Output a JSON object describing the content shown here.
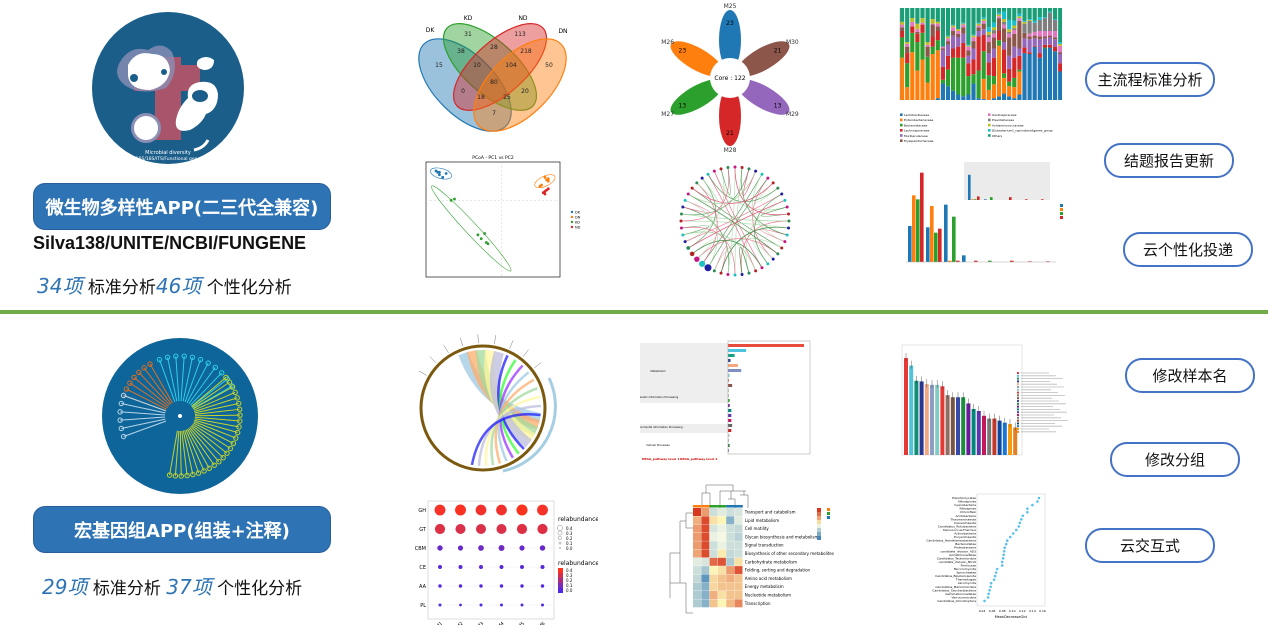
{
  "left": {
    "app1": {
      "logo_text": [
        "Microbial diversity",
        "16S/18S/ITS/Functional gene"
      ],
      "title": "微生物多样性APP(二三代全兼容)",
      "databases": "Silva138/UNITE/NCBI/FUNGENE",
      "std_count": "34项",
      "std_label": "标准分析",
      "custom_count": "46项",
      "custom_label": "个性化分析"
    },
    "app2": {
      "title": "宏基因组APP(组装+注释)",
      "std_count": "29项",
      "std_label": "标准分析",
      "custom_count": "37项",
      "custom_label": "个性化分析",
      "tree_groups": [
        {
          "color": "#e0701f",
          "leaves": 7
        },
        {
          "color": "#2fd0e8",
          "leaves": 11
        },
        {
          "color": "#c8d42a",
          "leaves": 26
        },
        {
          "color": "#b8d6ea",
          "leaves": 6
        }
      ]
    }
  },
  "features": [
    {
      "label": "主流程标准分析"
    },
    {
      "label": "结题报告更新"
    },
    {
      "label": "云个性化投递"
    },
    {
      "label": "修改样本名"
    },
    {
      "label": "修改分组"
    },
    {
      "label": "云交互式"
    }
  ],
  "colors": {
    "accent": "#2e74b5",
    "divider": "#70ad47",
    "pill_border": "#4472c4"
  },
  "chart_data": [
    {
      "id": "venn",
      "type": "venn",
      "sets": [
        {
          "name": "DK",
          "color": "#1f77b4"
        },
        {
          "name": "KD",
          "color": "#2ca02c"
        },
        {
          "name": "ND",
          "color": "#d62728"
        },
        {
          "name": "DN",
          "color": "#ff7f0e"
        }
      ],
      "regions": [
        "15",
        "31",
        "113",
        "50",
        "38",
        "28",
        "218",
        "10",
        "104",
        "80",
        "0",
        "20",
        "18",
        "25",
        "7"
      ]
    },
    {
      "id": "flower",
      "type": "flower",
      "core": "Core : 122",
      "petals": [
        {
          "name": "M25",
          "value": "23",
          "color": "#1f77b4"
        },
        {
          "name": "M30",
          "value": "21",
          "color": "#8c564b"
        },
        {
          "name": "M29",
          "value": "13",
          "color": "#9467bd"
        },
        {
          "name": "M28",
          "value": "21",
          "color": "#d62728"
        },
        {
          "name": "M27",
          "value": "13",
          "color": "#2ca02c"
        },
        {
          "name": "M26",
          "value": "23",
          "color": "#ff7f0e"
        }
      ]
    },
    {
      "id": "pcoa",
      "type": "scatter",
      "title": "PCoA - PC1 vs PC2",
      "xlim": [
        -0.45,
        0.35
      ],
      "ylim": [
        -0.6,
        0.3
      ],
      "series": [
        {
          "name": "DK",
          "color": "#1f77b4",
          "points": [
            [
              -0.39,
              0.23
            ],
            [
              -0.38,
              0.22
            ],
            [
              -0.37,
              0.22
            ],
            [
              -0.37,
              0.2
            ],
            [
              -0.35,
              0.18
            ],
            [
              -0.33,
              0.21
            ]
          ]
        },
        {
          "name": "DN",
          "color": "#ff7f0e",
          "points": [
            [
              0.23,
              0.11
            ],
            [
              0.24,
              0.12
            ],
            [
              0.26,
              0.18
            ],
            [
              0.27,
              0.16
            ],
            [
              0.28,
              0.17
            ],
            [
              0.28,
              0.15
            ]
          ]
        },
        {
          "name": "KD",
          "color": "#2ca02c",
          "points": [
            [
              -0.3,
              0.0
            ],
            [
              -0.28,
              0.01
            ],
            [
              -0.14,
              -0.27
            ],
            [
              -0.12,
              -0.3
            ],
            [
              -0.1,
              -0.26
            ],
            [
              -0.09,
              -0.33
            ],
            [
              -0.08,
              -0.34
            ]
          ]
        },
        {
          "name": "ND",
          "color": "#d62728",
          "points": [
            [
              0.25,
              0.06
            ],
            [
              0.26,
              0.05
            ],
            [
              0.26,
              0.07
            ],
            [
              0.27,
              0.08
            ],
            [
              0.28,
              0.09
            ]
          ]
        }
      ]
    },
    {
      "id": "network",
      "type": "chord-network",
      "node_colors": [
        "#c71585",
        "#b22222",
        "#2e8b57",
        "#1e1ea0",
        "#20c0c0"
      ],
      "edge_colors": [
        "#e8577e",
        "#3d8c40",
        "#a6d8a6"
      ]
    },
    {
      "id": "stacked",
      "type": "bar-stacked",
      "ylim": [
        0,
        100
      ],
      "legend": [
        "Lactobacillaceae",
        "Enterobacteriaceae",
        "Bacteroidaceae",
        "Lachnospiraceae",
        "Muribaculaceae",
        "Erysipelotrichaceae",
        "Oscillospiraceae",
        "Prevotellaceae",
        "Acidaminococcaceae",
        "[Eubacterium]_coprostanoligenes_group",
        "Others"
      ],
      "colors": [
        "#1f77b4",
        "#ff7f0e",
        "#2ca02c",
        "#d62728",
        "#9467bd",
        "#8c564b",
        "#e377c2",
        "#7f7f7f",
        "#bcbd22",
        "#17becf",
        "#1a9e77"
      ],
      "values": [
        [
          0,
          46,
          22,
          7,
          0,
          4,
          3,
          0,
          3,
          0
        ],
        [
          0,
          14,
          26,
          11,
          0,
          7,
          3,
          0,
          2,
          0
        ],
        [
          0,
          52,
          21,
          7,
          0,
          0,
          5,
          0,
          4,
          0
        ],
        [
          0,
          32,
          31,
          9,
          0,
          2,
          3,
          0,
          6,
          0
        ],
        [
          0,
          44,
          29,
          9,
          0,
          0,
          2,
          0,
          5,
          0
        ],
        [
          0,
          19,
          28,
          0,
          0,
          11,
          2,
          0,
          3,
          0
        ],
        [
          0,
          50,
          8,
          11,
          0,
          13,
          1,
          0,
          5,
          0
        ],
        [
          2,
          52,
          11,
          10,
          0,
          5,
          3,
          0,
          2,
          0
        ],
        [
          18,
          0,
          4,
          14,
          18,
          2,
          2,
          0,
          0,
          0
        ],
        [
          15,
          0,
          18,
          15,
          12,
          4,
          3,
          0,
          2,
          1
        ],
        [
          10,
          0,
          36,
          10,
          14,
          5,
          4,
          0,
          2,
          1
        ],
        [
          6,
          0,
          40,
          12,
          10,
          4,
          3,
          0,
          2,
          0
        ],
        [
          4,
          0,
          42,
          16,
          10,
          7,
          3,
          0,
          1,
          1
        ],
        [
          6,
          0,
          20,
          14,
          8,
          6,
          4,
          0,
          1,
          1
        ],
        [
          18,
          0,
          10,
          16,
          12,
          8,
          4,
          0,
          2,
          1
        ],
        [
          2,
          0,
          30,
          37,
          6,
          4,
          2,
          0,
          2,
          1
        ],
        [
          1,
          22,
          30,
          18,
          6,
          6,
          3,
          0,
          2,
          2
        ],
        [
          0,
          11,
          16,
          14,
          10,
          12,
          5,
          3,
          3,
          5
        ],
        [
          2,
          15,
          9,
          20,
          10,
          12,
          4,
          4,
          3,
          5
        ],
        [
          4,
          55,
          6,
          10,
          0,
          14,
          2,
          0,
          2,
          2
        ],
        [
          7,
          17,
          5,
          26,
          8,
          15,
          4,
          3,
          3,
          8
        ],
        [
          4,
          11,
          5,
          14,
          14,
          20,
          4,
          2,
          3,
          10
        ],
        [
          2,
          12,
          10,
          22,
          12,
          14,
          4,
          2,
          3,
          5
        ],
        [
          6,
          25,
          2,
          15,
          8,
          30,
          3,
          0,
          2,
          3
        ],
        [
          51,
          0,
          0,
          6,
          10,
          6,
          0,
          10,
          2,
          1
        ],
        [
          50,
          0,
          0,
          2,
          14,
          3,
          3,
          14,
          1,
          1
        ],
        [
          58,
          0,
          0,
          1,
          8,
          3,
          4,
          10,
          0,
          2
        ],
        [
          46,
          0,
          0,
          5,
          15,
          3,
          6,
          12,
          0,
          3
        ],
        [
          56,
          0,
          1,
          3,
          7,
          2,
          6,
          14,
          0,
          1
        ],
        [
          57,
          0,
          0,
          3,
          8,
          2,
          5,
          20,
          0,
          1
        ],
        [
          53,
          0,
          0,
          5,
          8,
          2,
          7,
          12,
          0,
          1
        ],
        [
          31,
          0,
          0,
          9,
          10,
          2,
          7,
          0,
          2,
          2
        ]
      ]
    },
    {
      "id": "grouped",
      "type": "bar",
      "ylim": [
        0,
        0.75
      ],
      "colors": [
        "#1f77b4",
        "#ff7f0e",
        "#2ca02c",
        "#d62728"
      ],
      "values": [
        [
          0.27,
          0.5,
          0.47,
          0.67
        ],
        [
          0.26,
          0.42,
          0.22,
          0.25
        ],
        [
          0.43,
          0.01,
          0.34,
          0.01
        ],
        [
          0.05,
          0,
          0,
          0.01
        ],
        [
          0,
          0,
          0.01,
          0
        ],
        [
          0,
          0,
          0,
          0.01
        ],
        [
          0,
          0,
          0,
          0.005
        ],
        [
          0,
          0,
          0,
          0.005
        ]
      ],
      "inset_values": [
        [
          0.7,
          0.02,
          0.02,
          0.1
        ],
        [
          0.02,
          0,
          0.08,
          0
        ],
        [
          0,
          0,
          0,
          0.08
        ],
        [
          0,
          0,
          0,
          0.02
        ],
        [
          0,
          0,
          0,
          0.02
        ]
      ]
    },
    {
      "id": "chord",
      "type": "chord",
      "ribbon_colors": [
        "#9ecae1",
        "#fdae6b",
        "#a1d99b",
        "#fff59d",
        "#bcbddc",
        "#1e1eff",
        "#33ff33",
        "#9933ff"
      ]
    },
    {
      "id": "kegg",
      "type": "bar-horizontal",
      "level1": [
        "Metabolism",
        "Genetic Information Processing",
        "Environmental Information Processing",
        "Cellular Processes"
      ],
      "footer": [
        "KEGG_pathway level 1",
        "KEGG_pathway level 2"
      ],
      "values": [
        4.6,
        1.1,
        0.4,
        0.15,
        0.6,
        0.8,
        0.1,
        0.05,
        0.25,
        0.05,
        0.03,
        0.1,
        0.1,
        0.2,
        0.2,
        0.2,
        0.25,
        0.2,
        0.1,
        0.05,
        0.1,
        0.05
      ],
      "colors": [
        "#e74c3c",
        "#4dc3e0",
        "#16a085",
        "#2c3e8f",
        "#f4a582",
        "#7f8fbf",
        "#7fd3c8",
        "#e74c3c",
        "#8c564b",
        "#bbb",
        "#aaa",
        "#2ca02c",
        "#6a1b9a",
        "#00897b",
        "#5e35b1",
        "#c2185b",
        "#666",
        "#c62828",
        "#ccc",
        "#aaa",
        "#2e7d32",
        "#5c6bc0"
      ]
    },
    {
      "id": "bubble",
      "type": "scatter",
      "rows": [
        "GH",
        "GT",
        "CBM",
        "CE",
        "AA",
        "PL"
      ],
      "cols": [
        "M1",
        "M2",
        "M3",
        "M4",
        "M5",
        "M6"
      ],
      "values": [
        [
          0.4,
          0.41,
          0.39,
          0.39,
          0.42,
          0.4
        ],
        [
          0.34,
          0.33,
          0.33,
          0.33,
          0.34,
          0.34
        ],
        [
          0.06,
          0.05,
          0.07,
          0.08,
          0.05,
          0.06
        ],
        [
          0.02,
          0.02,
          0.02,
          0.02,
          0.02,
          0.02
        ],
        [
          0.01,
          0.01,
          0.01,
          0.01,
          0.01,
          0.01
        ],
        [
          0.005,
          0.003,
          0.005,
          0.005,
          0.004,
          0.005
        ]
      ],
      "legend_title": "relabundance",
      "legend_ticks": [
        "0.4",
        "0.3",
        "0.2",
        "0.1",
        "0.0"
      ]
    },
    {
      "id": "heatmap",
      "type": "heatmap",
      "rows": [
        "Transport and catabolism",
        "Lipid metabolism",
        "Cell motility",
        "Glycan biosynthesis and metabolism",
        "Signal transduction",
        "Biosynthesis of other secondary metabolites",
        "Carbohydrate metabolism",
        "Folding, sorting and degradation",
        "Amino acid metabolism",
        "Energy metabolism",
        "Nucleotide metabolism",
        "Transcription"
      ],
      "group_colors": [
        "#ff7f0e",
        "#ff7f0e",
        "#2ca02c",
        "#2ca02c",
        "#1f77b4",
        "#1f77b4"
      ],
      "values": [
        [
          2,
          1,
          -0.5,
          -0.3,
          -0.5,
          -0.4
        ],
        [
          0.8,
          1.8,
          0.3,
          0.1,
          -1.2,
          -0.3
        ],
        [
          1,
          1.8,
          -0.4,
          -0.2,
          -0.5,
          -0.6
        ],
        [
          1,
          1.8,
          -0.2,
          -0.1,
          -0.5,
          -0.7
        ],
        [
          1,
          1.8,
          -0.5,
          -0.2,
          -0.5,
          -0.5
        ],
        [
          0.9,
          1.8,
          -0.5,
          0.2,
          -0.6,
          -0.5
        ],
        [
          -0.3,
          -0.4,
          1.5,
          1.7,
          -0.8,
          0.3
        ],
        [
          -0.5,
          -0.9,
          0.1,
          0.3,
          1,
          1.7
        ],
        [
          -0.6,
          -1.6,
          0.4,
          0.6,
          0.8,
          0.6
        ],
        [
          -0.8,
          -1.2,
          0.4,
          0.6,
          0.6,
          0.6
        ],
        [
          -0.8,
          -1.2,
          0.8,
          0.3,
          0.6,
          0.6
        ],
        [
          -0.8,
          -1.2,
          0.6,
          0.1,
          0.7,
          1.2
        ]
      ]
    },
    {
      "id": "sorted-bar",
      "type": "bar",
      "ylim": [
        0,
        0.16
      ],
      "values": [
        0.141,
        0.13,
        0.108,
        0.107,
        0.103,
        0.102,
        0.102,
        0.1,
        0.087,
        0.084,
        0.084,
        0.084,
        0.075,
        0.067,
        0.064,
        0.057,
        0.053,
        0.053,
        0.05,
        0.047,
        0.045,
        0.04
      ],
      "colors": [
        "#e53935",
        "#4fc3d9",
        "#138d75",
        "#283593",
        "#f4a582",
        "#8e9dc4",
        "#80cbc4",
        "#e53935",
        "#8d6e63",
        "#795548",
        "#3949ab",
        "#1b8f3c",
        "#6a1b9a",
        "#00897b",
        "#5e35b1",
        "#c2185b",
        "#777",
        "#c0392b",
        "#0d47a1",
        "#1976d2",
        "#f39c12",
        "#e67e22"
      ]
    },
    {
      "id": "dotplot",
      "type": "scatter",
      "xlabel": "MeanDecreaseGini",
      "xticks": [
        "0.04",
        "0.06",
        "0.08",
        "0.10",
        "0.12",
        "0.14",
        "0.16"
      ],
      "xlim": [
        0.03,
        0.165
      ],
      "labels": [
        "Planctomycetes",
        "Nitrospirota",
        "Cyanobacteria",
        "Nitrospirae",
        "Chloroflexi",
        "Acidobacteria",
        "Thaumarchaeota",
        "Crenarchaeota",
        "Candidatus_Rokubacteria",
        "Deinococcus-Thermus",
        "Actinobacteria",
        "Euryarchaeota",
        "Candidatus_Handelsmanbacteria",
        "Bacteroidetes",
        "Proteobacteria",
        "candidate_division_AD3",
        "Armatimonadetes",
        "Candidatus_Tectomicrobia",
        "candidate_division_NC10",
        "Firmicutes",
        "Mucoromycota",
        "Spirochaetes",
        "Candidatus_Bipolaricaulota",
        "Thermotogae",
        "Ascomycota",
        "Candidatus_Marinimicrobia",
        "Candidatus_Saccharibacteria",
        "Gemmatimonadetes",
        "Verrucomicrobia",
        "Candidatus_Omnitrophica"
      ],
      "values": [
        0.153,
        0.15,
        0.14,
        0.13,
        0.13,
        0.121,
        0.118,
        0.115,
        0.113,
        0.108,
        0.102,
        0.096,
        0.09,
        0.088,
        0.085,
        0.084,
        0.083,
        0.082,
        0.08,
        0.08,
        0.07,
        0.068,
        0.066,
        0.064,
        0.058,
        0.057,
        0.055,
        0.053,
        0.052,
        0.045
      ],
      "color": "#5bc0eb"
    }
  ]
}
